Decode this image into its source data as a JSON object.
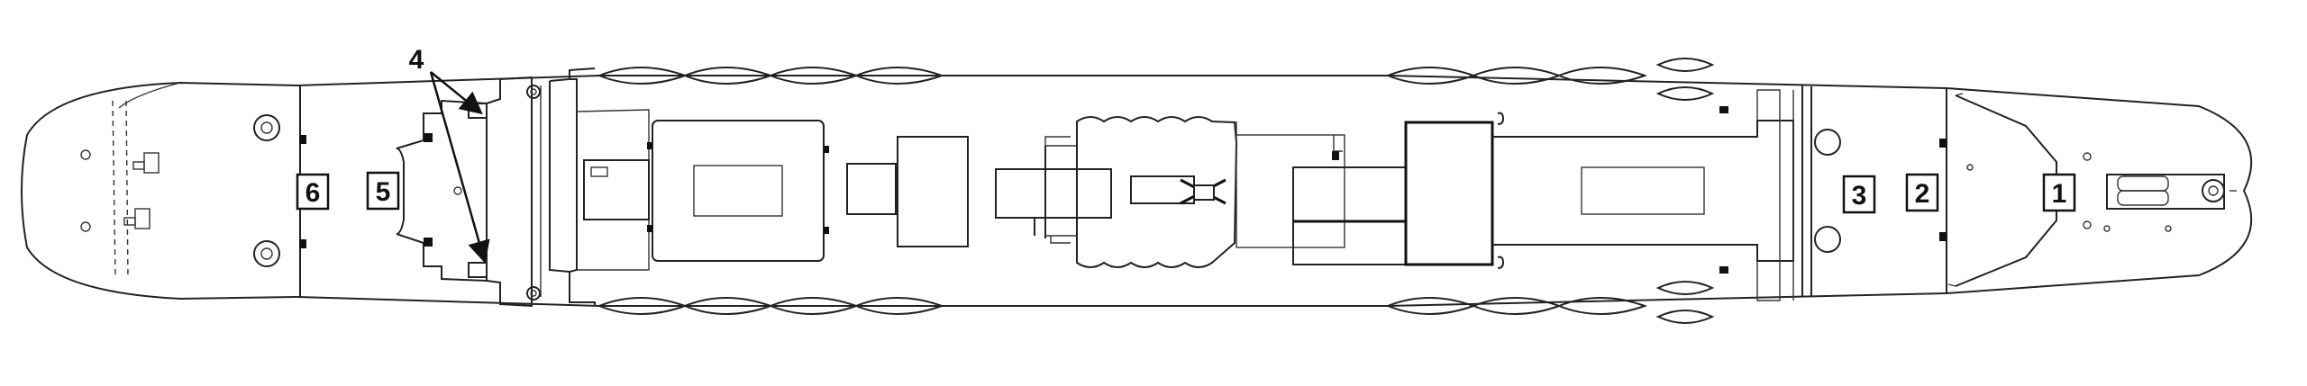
{
  "diagram": {
    "labels": {
      "stern_pointer": "4",
      "deck_6": "6",
      "deck_5": "5",
      "deck_3": "3",
      "deck_2": "2",
      "deck_1": "1"
    }
  }
}
